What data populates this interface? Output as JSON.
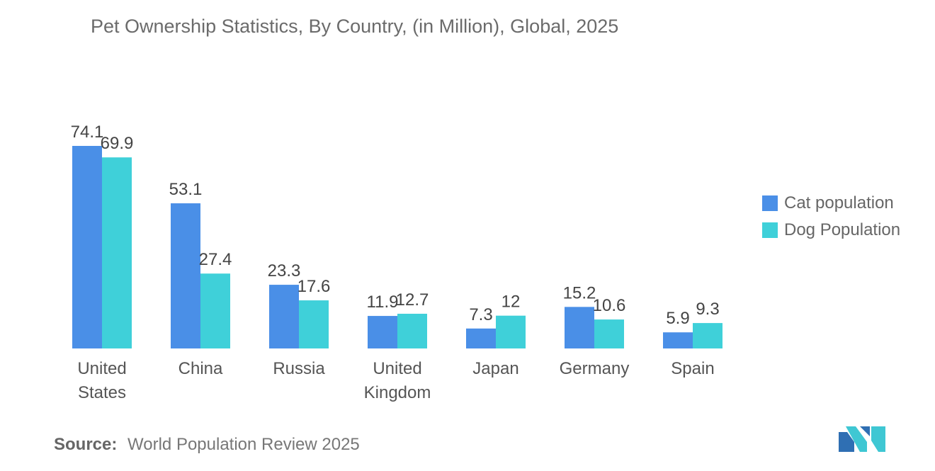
{
  "title": "Pet Ownership Statistics, By Country, (in Million), Global, 2025",
  "chart_data": {
    "type": "bar",
    "categories": [
      [
        "United",
        "States"
      ],
      [
        "China"
      ],
      [
        "Russia"
      ],
      [
        "United",
        "Kingdom"
      ],
      [
        "Japan"
      ],
      [
        "Germany"
      ],
      [
        "Spain"
      ]
    ],
    "series": [
      {
        "name": "Cat population",
        "color": "#4a8fe7",
        "values": [
          74.1,
          53.1,
          23.3,
          11.9,
          7.3,
          15.2,
          5.9
        ]
      },
      {
        "name": "Dog Population",
        "color": "#3fd0d9",
        "values": [
          69.9,
          27.4,
          17.6,
          12.7,
          12,
          10.6,
          9.3
        ]
      }
    ],
    "ylim": [
      0,
      74.1
    ],
    "legend_position": "right",
    "grid": false
  },
  "legend": {
    "cat_label": "Cat population",
    "dog_label": "Dog Population"
  },
  "source": {
    "label": "Source:",
    "text": "World Population Review 2025"
  },
  "logo": {
    "name": "mordor-intelligence-logo-icon"
  }
}
